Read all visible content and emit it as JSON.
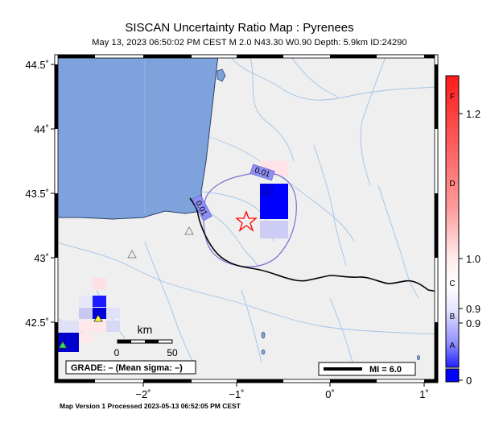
{
  "title": "SISCAN Uncertainty Ratio Map : Pyrenees",
  "subtitle": "May 13, 2023 06:50:02 PM CEST   M 2.0   N43.30 W0.90   Depth: 5.9km   ID:24290",
  "footer": "Map Version 1 Processed 2023-05-13 06:52:05 PM CEST",
  "axes": {
    "lat_labels": [
      "44.5˚",
      "44˚",
      "43.5˚",
      "43˚",
      "42.5˚"
    ],
    "lon_labels": [
      "−2˚",
      "−1˚",
      "0˚",
      "1˚"
    ]
  },
  "contours": {
    "label_a": "0.01",
    "label_b": "0.01"
  },
  "scale": {
    "unit": "km",
    "zero": "0",
    "fifty": "50"
  },
  "grade_box": "GRADE: – (Mean sigma: –)",
  "mi_box": "MI = 6.0",
  "colorbar": {
    "values": [
      "1.2",
      "1.0",
      "0.9",
      "0.9",
      "0"
    ],
    "grades": [
      "F",
      "D",
      "C",
      "B",
      "A"
    ]
  },
  "colors": {
    "sea": "#7ea3dc",
    "land": "#efefef",
    "river": "#9fc3e8",
    "border": "#000000",
    "epicenter": "#ff0000",
    "high_uncertainty": "#0000ff"
  }
}
